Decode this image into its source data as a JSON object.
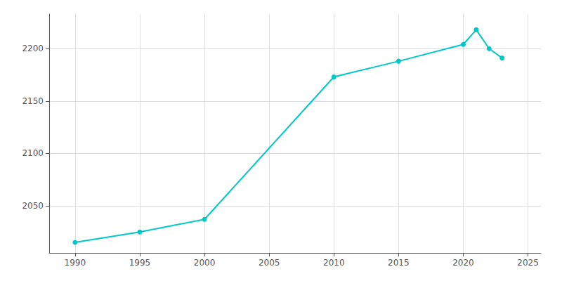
{
  "chart_data": {
    "type": "line",
    "x": [
      1990,
      1995,
      2000,
      2010,
      2015,
      2020,
      2021,
      2022,
      2023
    ],
    "values": [
      2015,
      2025,
      2037,
      2173,
      2188,
      2204,
      2218,
      2200,
      2191
    ],
    "color": "#00c8c8",
    "marker": "circle",
    "xlim": [
      1988,
      2026
    ],
    "ylim": [
      2005,
      2233
    ],
    "xticks": [
      1990,
      1995,
      2000,
      2005,
      2010,
      2015,
      2020,
      2025
    ],
    "yticks": [
      2050,
      2100,
      2150,
      2200
    ],
    "grid": true
  }
}
